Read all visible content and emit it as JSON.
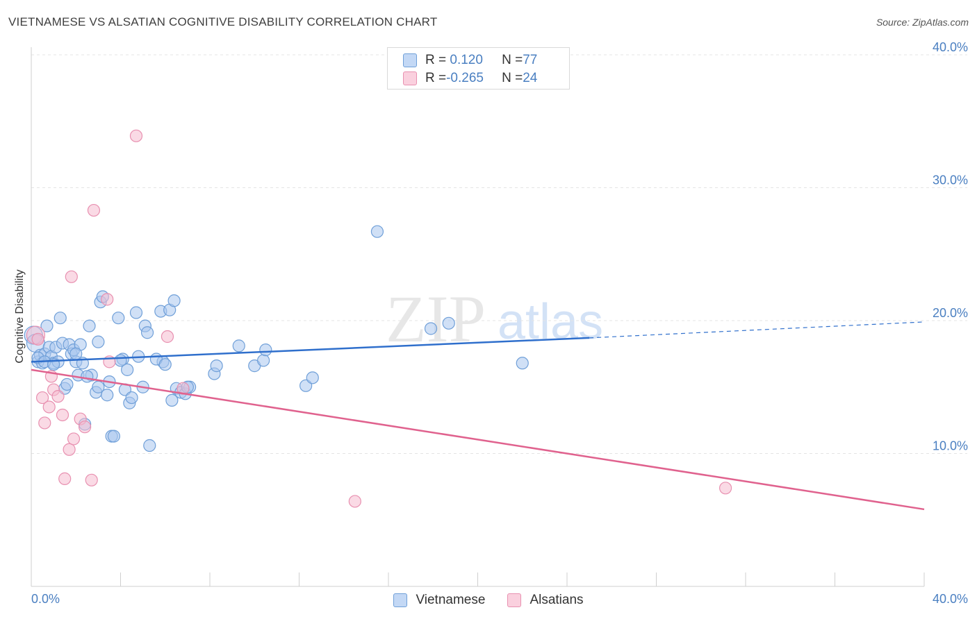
{
  "title": "VIETNAMESE VS ALSATIAN COGNITIVE DISABILITY CORRELATION CHART",
  "source": "Source: ZipAtlas.com",
  "watermark": {
    "part1": "ZIP",
    "part2": "atlas"
  },
  "colors": {
    "vietnamese_fill": "#a9c6ef",
    "vietnamese_stroke": "#6f9fd8",
    "vietnamese_line": "#2f6fcc",
    "alsatian_fill": "#f6bcd0",
    "alsatian_stroke": "#e890b0",
    "alsatian_line": "#e0628e",
    "axis_label": "#4a7fc1",
    "grid": "#e4e4e4"
  },
  "legend": {
    "rows": [
      {
        "r_label": "R = ",
        "r_value": " 0.120",
        "n_label": "N = ",
        "n_value": "77"
      },
      {
        "r_label": "R = ",
        "r_value": "-0.265",
        "n_label": "N = ",
        "n_value": "24"
      }
    ]
  },
  "chart_data": {
    "type": "scatter",
    "title": "VIETNAMESE VS ALSATIAN COGNITIVE DISABILITY CORRELATION CHART",
    "xlabel": "",
    "ylabel": "Cognitive Disability",
    "xlim": [
      0,
      40
    ],
    "ylim": [
      0,
      41
    ],
    "x_tick_labels": [
      "0.0%",
      "40.0%"
    ],
    "y_tick_values": [
      10,
      20,
      30,
      40
    ],
    "y_tick_labels": [
      "10.0%",
      "20.0%",
      "30.0%",
      "40.0%"
    ],
    "grid": true,
    "legend_position": "top-center",
    "series": [
      {
        "name": "Vietnamese",
        "R": 0.12,
        "N": 77,
        "trend": {
          "x0": 0,
          "y0": 16.9,
          "x1": 25,
          "y1": 18.7,
          "dash_to_x": 40,
          "dash_to_y": 19.9
        },
        "points": [
          [
            0.1,
            18.9
          ],
          [
            0.2,
            18.3
          ],
          [
            0.3,
            16.9
          ],
          [
            0.4,
            17.4
          ],
          [
            0.5,
            16.8
          ],
          [
            0.6,
            17.5
          ],
          [
            0.7,
            19.6
          ],
          [
            0.8,
            18.0
          ],
          [
            0.9,
            17.3
          ],
          [
            1.0,
            16.8
          ],
          [
            1.1,
            18.0
          ],
          [
            1.2,
            16.9
          ],
          [
            1.3,
            20.2
          ],
          [
            1.4,
            18.3
          ],
          [
            1.5,
            14.9
          ],
          [
            1.6,
            15.2
          ],
          [
            1.7,
            18.2
          ],
          [
            1.8,
            17.5
          ],
          [
            1.9,
            17.8
          ],
          [
            2.0,
            16.9
          ],
          [
            2.1,
            15.9
          ],
          [
            2.2,
            18.2
          ],
          [
            2.3,
            16.8
          ],
          [
            2.4,
            12.2
          ],
          [
            2.6,
            19.6
          ],
          [
            2.7,
            15.9
          ],
          [
            2.9,
            14.6
          ],
          [
            3.0,
            18.4
          ],
          [
            3.1,
            21.4
          ],
          [
            3.2,
            21.8
          ],
          [
            3.4,
            14.4
          ],
          [
            3.5,
            15.4
          ],
          [
            3.6,
            11.3
          ],
          [
            3.7,
            11.3
          ],
          [
            3.9,
            20.2
          ],
          [
            4.1,
            17.1
          ],
          [
            4.2,
            14.8
          ],
          [
            4.3,
            16.3
          ],
          [
            4.4,
            13.8
          ],
          [
            4.5,
            14.2
          ],
          [
            4.7,
            20.6
          ],
          [
            4.8,
            17.3
          ],
          [
            5.0,
            15.0
          ],
          [
            5.1,
            19.6
          ],
          [
            5.2,
            19.1
          ],
          [
            5.3,
            10.6
          ],
          [
            5.8,
            20.7
          ],
          [
            5.9,
            16.9
          ],
          [
            6.2,
            20.8
          ],
          [
            6.3,
            14.0
          ],
          [
            6.4,
            21.5
          ],
          [
            6.5,
            14.9
          ],
          [
            6.7,
            14.6
          ],
          [
            6.9,
            14.5
          ],
          [
            7.1,
            15.0
          ],
          [
            8.2,
            16.0
          ],
          [
            8.3,
            16.6
          ],
          [
            9.3,
            18.1
          ],
          [
            10.0,
            16.6
          ],
          [
            10.4,
            17.0
          ],
          [
            10.5,
            17.8
          ],
          [
            12.3,
            15.1
          ],
          [
            12.6,
            15.7
          ],
          [
            15.5,
            26.7
          ],
          [
            17.9,
            19.4
          ],
          [
            18.7,
            19.8
          ],
          [
            22.0,
            16.8
          ],
          [
            0.3,
            17.2
          ],
          [
            0.6,
            16.9
          ],
          [
            1.0,
            16.7
          ],
          [
            2.0,
            17.5
          ],
          [
            2.5,
            15.8
          ],
          [
            3.0,
            15.0
          ],
          [
            4.0,
            17.0
          ],
          [
            5.6,
            17.1
          ],
          [
            6.0,
            16.7
          ],
          [
            7.0,
            15.0
          ]
        ]
      },
      {
        "name": "Alsatians",
        "R": -0.265,
        "N": 24,
        "trend": {
          "x0": 0,
          "y0": 16.3,
          "x1": 40,
          "y1": 5.8
        },
        "points": [
          [
            0.2,
            18.9
          ],
          [
            0.3,
            18.6
          ],
          [
            0.5,
            14.2
          ],
          [
            0.6,
            12.3
          ],
          [
            0.8,
            13.5
          ],
          [
            0.9,
            15.8
          ],
          [
            1.0,
            14.8
          ],
          [
            1.2,
            14.3
          ],
          [
            1.4,
            12.9
          ],
          [
            1.5,
            8.1
          ],
          [
            1.7,
            10.3
          ],
          [
            1.8,
            23.3
          ],
          [
            1.9,
            11.1
          ],
          [
            2.2,
            12.6
          ],
          [
            2.4,
            12.0
          ],
          [
            2.7,
            8.0
          ],
          [
            2.8,
            28.3
          ],
          [
            3.4,
            21.6
          ],
          [
            3.5,
            16.9
          ],
          [
            4.7,
            33.9
          ],
          [
            6.1,
            18.8
          ],
          [
            6.8,
            14.9
          ],
          [
            14.5,
            6.4
          ],
          [
            31.1,
            7.4
          ]
        ]
      }
    ]
  },
  "bottom_legend": [
    {
      "label": "Vietnamese"
    },
    {
      "label": "Alsatians"
    }
  ]
}
